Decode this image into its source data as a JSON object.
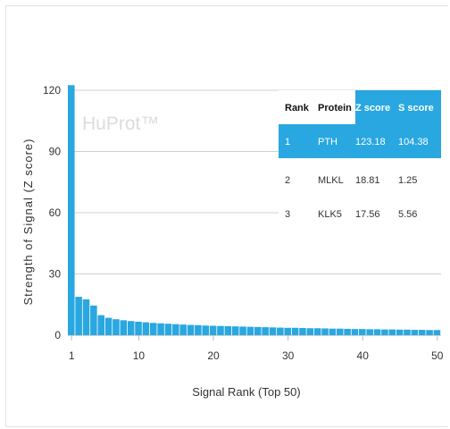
{
  "chart_data": {
    "type": "bar",
    "xlabel": "Signal Rank (Top 50)",
    "ylabel": "Strength of Signal (Z score)",
    "xlim": [
      1,
      50
    ],
    "ylim": [
      0,
      120
    ],
    "x_ticks": [
      "1",
      "10",
      "20",
      "30",
      "40",
      "50"
    ],
    "y_ticks": [
      "0",
      "30",
      "60",
      "90",
      "120"
    ],
    "grid": true,
    "bar_color": "#29a7e0",
    "watermark": "HuProt™",
    "values": [
      123.18,
      18.81,
      17.56,
      14.5,
      9.8,
      8.5,
      7.8,
      7.3,
      6.9,
      6.6,
      6.3,
      6.0,
      5.8,
      5.6,
      5.4,
      5.2,
      5.0,
      4.9,
      4.7,
      4.6,
      4.5,
      4.4,
      4.3,
      4.2,
      4.1,
      4.0,
      3.9,
      3.8,
      3.7,
      3.6,
      3.6,
      3.5,
      3.4,
      3.4,
      3.3,
      3.2,
      3.2,
      3.1,
      3.0,
      3.0,
      2.9,
      2.9,
      2.8,
      2.8,
      2.7,
      2.7,
      2.6,
      2.6,
      2.5,
      2.5
    ],
    "table": {
      "headers": [
        "Rank",
        "Protein",
        "Z score",
        "S score"
      ],
      "rows": [
        [
          "1",
          "PTH",
          "123.18",
          "104.38"
        ],
        [
          "2",
          "MLKL",
          "18.81",
          "1.25"
        ],
        [
          "3",
          "KLK5",
          "17.56",
          "5.56"
        ]
      ],
      "highlight_color": "#29a7e0"
    }
  }
}
